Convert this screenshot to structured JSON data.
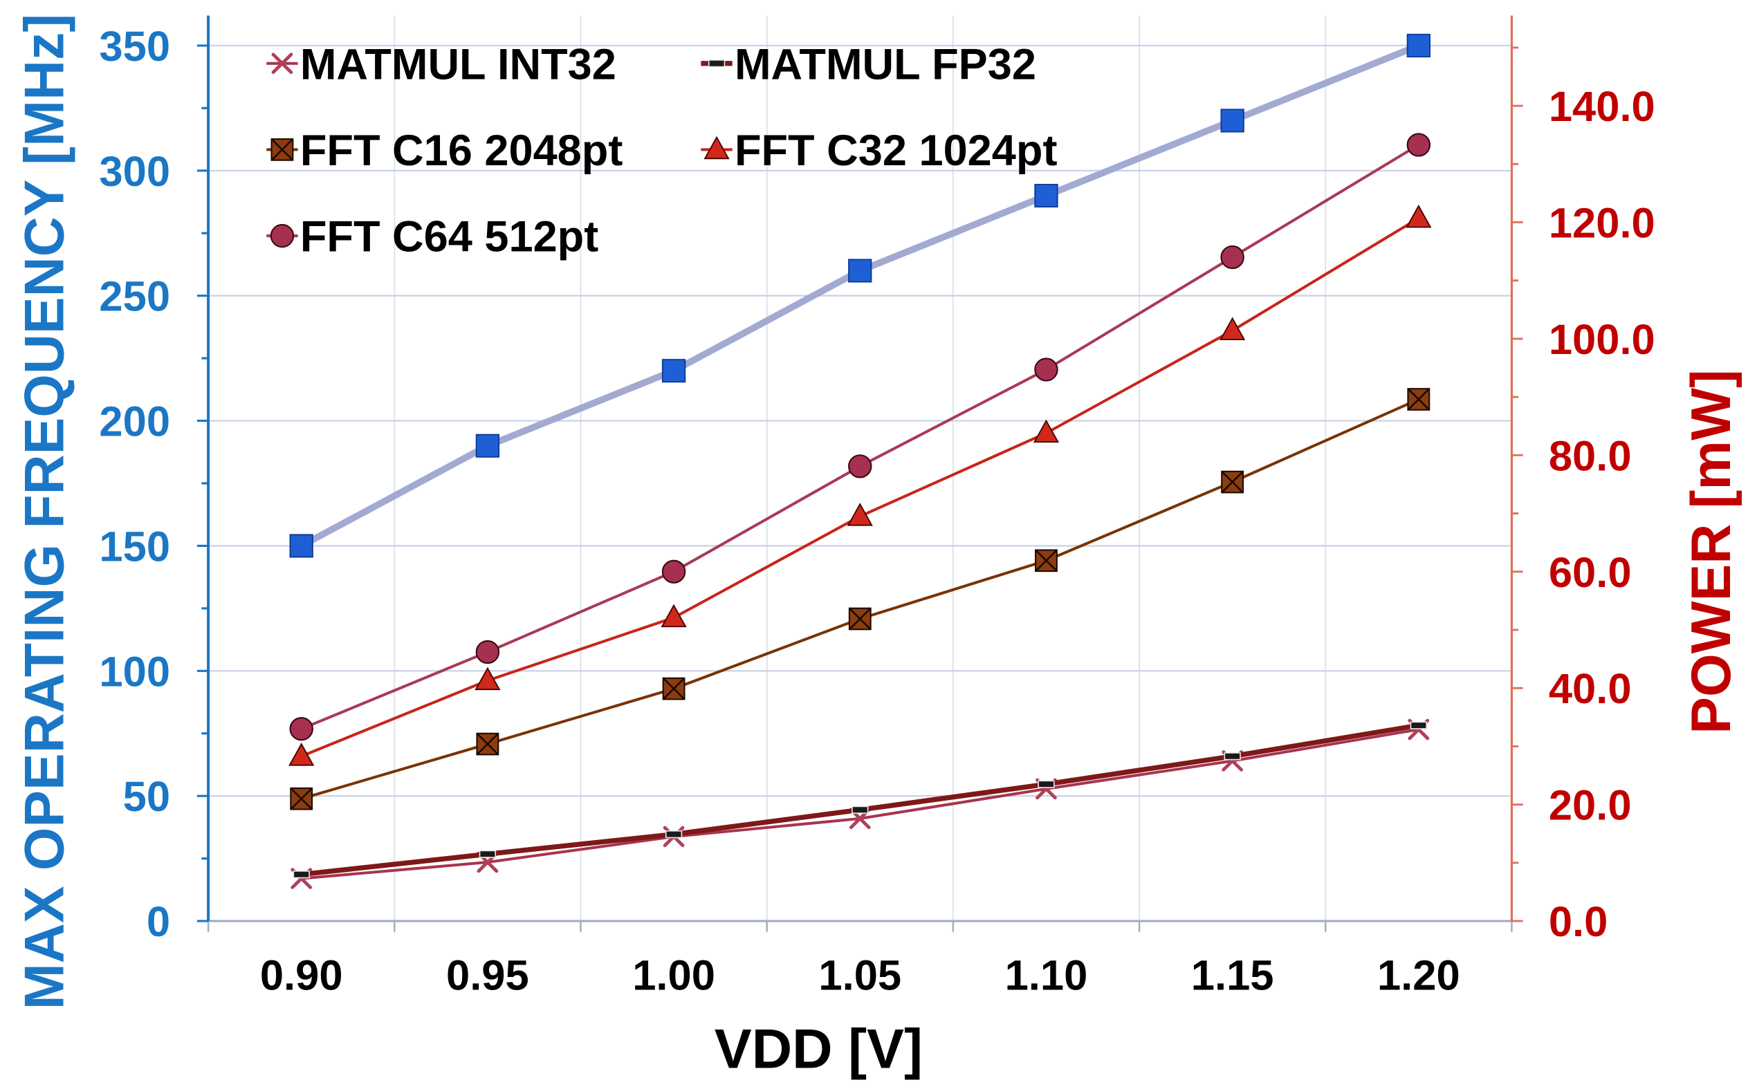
{
  "chart_data": {
    "type": "line",
    "xlabel": "VDD [V]",
    "ylabel": "MAX OPERATING FREQUENCY [MHz]",
    "y2label": "POWER [mW]",
    "categories": [
      "0.90",
      "0.95",
      "1.00",
      "1.05",
      "1.10",
      "1.15",
      "1.20"
    ],
    "ylim": [
      0,
      362
    ],
    "y2lim": [
      0,
      155.5
    ],
    "yticks": [
      "0",
      "50",
      "100",
      "150",
      "200",
      "250",
      "300",
      "350"
    ],
    "y2ticks": [
      "0.0",
      "20.0",
      "40.0",
      "60.0",
      "80.0",
      "100.0",
      "120.0",
      "140.0"
    ],
    "grid": true,
    "legend_position": "top-left",
    "colors": {
      "left_axis": "#1B77C5",
      "right_axis": "#C00000",
      "right_axis_line": "#E0705E",
      "bottom_axis": "#A3ADBF",
      "grid": "#CBD4E8",
      "grid_minor": "#DDE2EA",
      "text": "#000000"
    },
    "series": [
      {
        "name": "MATMUL INT32",
        "y_axis": 2,
        "marker": "x",
        "color": "#B0405A",
        "line_color": "#A8344F",
        "values": [
          7.3,
          10.1,
          14.5,
          17.6,
          22.7,
          27.5,
          32.9
        ]
      },
      {
        "name": "MATMUL FP32",
        "y_axis": 2,
        "marker": "dash",
        "color": "#1A1A1A",
        "line_color": "#7F1818",
        "values": [
          8.0,
          11.5,
          14.9,
          19.1,
          23.5,
          28.3,
          33.6
        ]
      },
      {
        "name": "FFT C16 2048pt",
        "y_axis": 2,
        "marker": "box-x",
        "color": "#8C3D10",
        "line_color": "#7A3300",
        "values": [
          21.0,
          30.4,
          39.9,
          51.9,
          61.9,
          75.4,
          89.6
        ]
      },
      {
        "name": "FFT C32 1024pt",
        "y_axis": 2,
        "marker": "triangle",
        "color": "#D0291C",
        "line_color": "#C8241A",
        "values": [
          28.3,
          41.3,
          52.1,
          69.5,
          83.8,
          101.4,
          120.7
        ]
      },
      {
        "name": "FFT C64 512pt",
        "y_axis": 2,
        "marker": "circle",
        "color": "#A5304F",
        "line_color": "#A83A58",
        "values": [
          33.0,
          46.2,
          60.0,
          78.1,
          94.7,
          114.0,
          133.3
        ]
      },
      {
        "y_axis": 1,
        "marker": "square",
        "color": "#1F5FD6",
        "line_color": "#A2AAD2",
        "values": [
          150,
          190,
          220,
          260,
          290,
          320,
          350
        ]
      }
    ]
  }
}
